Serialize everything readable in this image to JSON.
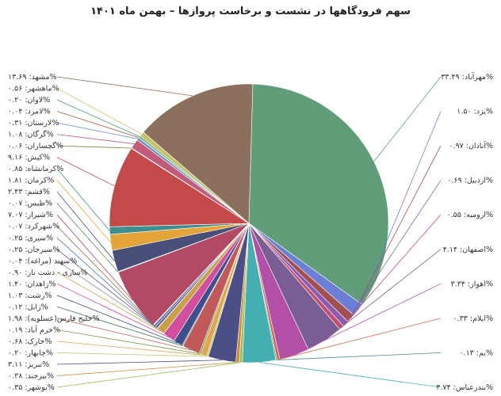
{
  "chart_data": {
    "type": "pie",
    "title": "سهم فرودگاهها در نشست و برخاست پروازها – بهمن ماه ۱۴۰۱",
    "slices": [
      {
        "name": "مهرآباد",
        "value": 33.49,
        "label": "مهرآباد: ۳۳.۴۹%",
        "color": "#5f9e78"
      },
      {
        "name": "یزد",
        "value": 1.5,
        "label": "یزد: ۱.۵۰%",
        "color": "#6b7fd6"
      },
      {
        "name": "آبادان",
        "value": 0.97,
        "label": "آبادان: ۰.۹۷%",
        "color": "#a05050"
      },
      {
        "name": "اردبیل",
        "value": 0.69,
        "label": "اردبیل: ۰.۶۹%",
        "color": "#8a5bb3"
      },
      {
        "name": "ارومیه",
        "value": 0.55,
        "label": "ارومیه: ۰.۵۵%",
        "color": "#c0506f"
      },
      {
        "name": "اصفهان",
        "value": 4.14,
        "label": "اصفهان: ۴.۱۴%",
        "color": "#7a5e93"
      },
      {
        "name": "اهواز",
        "value": 3.34,
        "label": "اهواز: ۳.۳۴%",
        "color": "#b24fa6"
      },
      {
        "name": "ایلام",
        "value": 0.33,
        "label": "ایلام: ۰.۳۳%",
        "color": "#d2694d"
      },
      {
        "name": "بم",
        "value": 0.13,
        "label": "بم: ۰.۱۳%",
        "color": "#4a8a8a"
      },
      {
        "name": "بندرعباس",
        "value": 3.74,
        "label": "بندرعباس: ۳.۷۴%",
        "color": "#45aeb0"
      },
      {
        "name": "بوشهر",
        "value": 0.35,
        "label": "بوشهر: ۰.۳۵%",
        "color": "#9ac25a"
      },
      {
        "name": "بیرجند",
        "value": 0.38,
        "label": "بیرجند: ۰.۳۸%",
        "color": "#d08a3a"
      },
      {
        "name": "تبریز",
        "value": 3.11,
        "label": "تبریز: ۳.۱۱%",
        "color": "#4b4f86"
      },
      {
        "name": "چابهار",
        "value": 0.2,
        "label": "چابهار: ۰.۲۰%",
        "color": "#b7c86a"
      },
      {
        "name": "خارک",
        "value": 0.68,
        "label": "خارک: ۰.۶۸%",
        "color": "#e0a550"
      },
      {
        "name": "خرم آباد",
        "value": 0.19,
        "label": "خرم آباد: ۰.۱۹%",
        "color": "#7a9a4e"
      },
      {
        "name": "خلیج فارس(عسلویه)",
        "value": 1.98,
        "label": "خلیج فارس(عسلویه): ۱.۹۸%",
        "color": "#c05a5a"
      },
      {
        "name": "زابل",
        "value": 0.12,
        "label": "زابل: ۰.۱۲%",
        "color": "#3f6f5f"
      },
      {
        "name": "رشت",
        "value": 1.03,
        "label": "رشت: ۱.۰۳%",
        "color": "#3e4f8c"
      },
      {
        "name": "زاهدان",
        "value": 1.4,
        "label": "زاهدان: ۱.۴۰%",
        "color": "#d24fa0"
      },
      {
        "name": "ساری - دشت ناز",
        "value": 0.9,
        "label": "ساری - دشت ناز: ۰.۹۰%",
        "color": "#c9a14a"
      },
      {
        "name": "سهند (مراغه)",
        "value": 0.04,
        "label": "سهند (مراغه): ۰.۰۴%",
        "color": "#8f8f8f"
      },
      {
        "name": "سیرجان",
        "value": 0.25,
        "label": "سیرجان: ۰.۲۵%",
        "color": "#6f4f8f"
      },
      {
        "name": "سیری",
        "value": 0.25,
        "label": "سیری: ۰.۲۵%",
        "color": "#4f7f9f"
      },
      {
        "name": "شهرکرد",
        "value": 0.07,
        "label": "شهرکرد: ۰.۰۷%",
        "color": "#a06f3f"
      },
      {
        "name": "شیراز",
        "value": 7.07,
        "label": "شیراز: ۷.۰۷%",
        "color": "#b24a66"
      },
      {
        "name": "طبس",
        "value": 0.07,
        "label": "طبس: ۰.۰۷%",
        "color": "#5a8f4f"
      },
      {
        "name": "قشم",
        "value": 2.43,
        "label": "قشم: ۲.۴۳%",
        "color": "#4a4f7a"
      },
      {
        "name": "کرمان",
        "value": 1.81,
        "label": "کرمان: ۱.۸۱%",
        "color": "#e3a43a"
      },
      {
        "name": "کرمانشاه",
        "value": 0.85,
        "label": "کرمانشاه: ۰.۸۵%",
        "color": "#3f8f8f"
      },
      {
        "name": "کیش",
        "value": 9.16,
        "label": "کیش: ۹.۱۶%",
        "color": "#c44a4a"
      },
      {
        "name": "گچساران",
        "value": 0.06,
        "label": "گچساران: ۰.۰۶%",
        "color": "#7f7f3f"
      },
      {
        "name": "گرگان",
        "value": 1.08,
        "label": "گرگان: ۱.۰۸%",
        "color": "#c25a7a"
      },
      {
        "name": "لارستان",
        "value": 0.31,
        "label": "لارستان: ۰.۳۱%",
        "color": "#6f8fbf"
      },
      {
        "name": "لامرد",
        "value": 0.04,
        "label": "لامرد: ۰.۰۴%",
        "color": "#9f5f3f"
      },
      {
        "name": "لاوان",
        "value": 0.2,
        "label": "لاوان: ۰.۲۰%",
        "color": "#4f9f6f"
      },
      {
        "name": "ماهشهر",
        "value": 0.56,
        "label": "ماهشهر: ۰.۵۶%",
        "color": "#c7c26a"
      },
      {
        "name": "مشهد",
        "value": 13.69,
        "label": "مشهد: ۱۳.۶۹%",
        "color": "#8c705e"
      }
    ]
  }
}
